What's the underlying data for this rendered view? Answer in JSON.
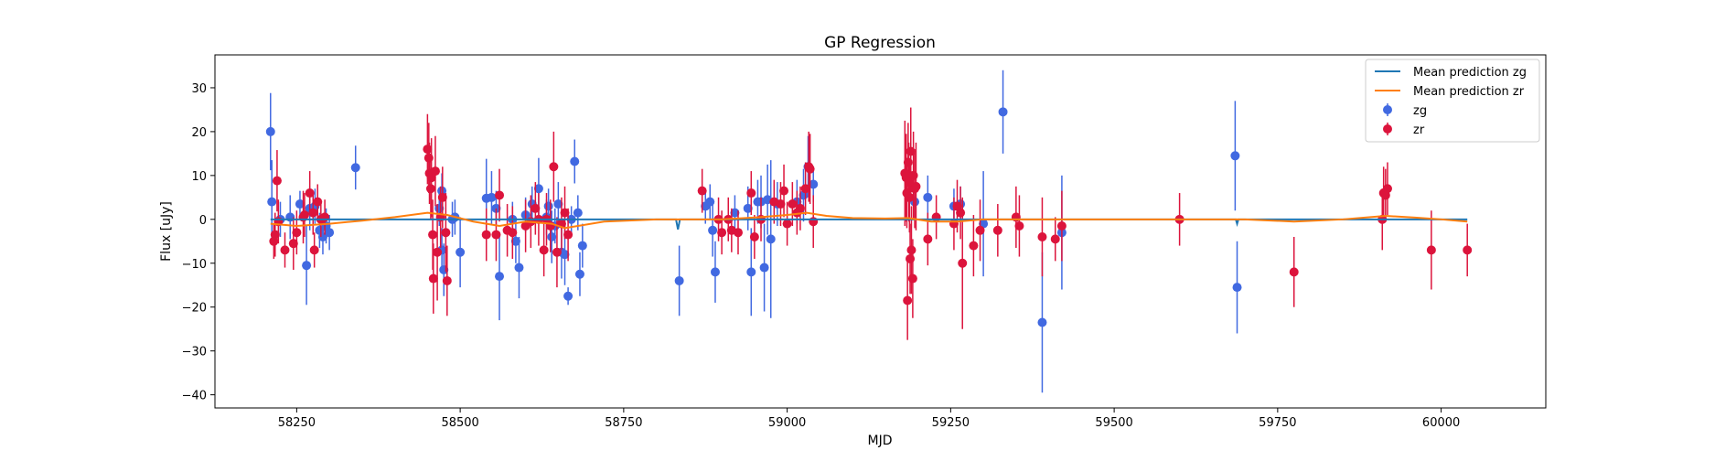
{
  "chart_data": {
    "type": "scatter",
    "title": "GP Regression",
    "xlabel": "MJD",
    "ylabel": "Flux [uJy]",
    "xlim": [
      58125,
      60160
    ],
    "ylim": [
      -43,
      37.5
    ],
    "x_ticks": [
      58250,
      58500,
      58750,
      59000,
      59250,
      59500,
      59750,
      60000
    ],
    "y_ticks": [
      -40,
      -30,
      -20,
      -10,
      0,
      10,
      20,
      30
    ],
    "grid": false,
    "legend_position": "top-right",
    "legend": [
      {
        "label": "Mean prediction zg",
        "kind": "line",
        "color": "#1f77b4"
      },
      {
        "label": "Mean prediction zr",
        "kind": "line",
        "color": "#ff7f0e"
      },
      {
        "label": "zg",
        "kind": "errorbar",
        "color": "#4169e1"
      },
      {
        "label": "zr",
        "kind": "errorbar",
        "color": "#dc143c"
      }
    ],
    "series": [
      {
        "name": "zg",
        "color": "#4169e1",
        "points": [
          [
            58210,
            20.0,
            8.8
          ],
          [
            58212,
            4.0,
            9.5
          ],
          [
            58225,
            0.0,
            4
          ],
          [
            58240,
            0.5,
            5
          ],
          [
            58255,
            3.5,
            3
          ],
          [
            58265,
            -10.5,
            9
          ],
          [
            58270,
            2.5,
            5
          ],
          [
            58278,
            3.0,
            4
          ],
          [
            58285,
            -2.5,
            4
          ],
          [
            58290,
            -4.0,
            4
          ],
          [
            58295,
            -1.5,
            4
          ],
          [
            58300,
            -3.0,
            4
          ],
          [
            58340,
            11.8,
            5
          ],
          [
            58468,
            2.5,
            4
          ],
          [
            58472,
            6.5,
            4
          ],
          [
            58472,
            -7.0,
            5
          ],
          [
            58475,
            -11.5,
            6
          ],
          [
            58488,
            0.0,
            4
          ],
          [
            58492,
            0.5,
            4
          ],
          [
            58500,
            -7.5,
            8
          ],
          [
            58540,
            4.8,
            9
          ],
          [
            58548,
            5.0,
            6
          ],
          [
            58555,
            2.5,
            4
          ],
          [
            58560,
            -13.0,
            10
          ],
          [
            58580,
            0.0,
            4
          ],
          [
            58585,
            -5.0,
            5
          ],
          [
            58590,
            -11.0,
            7
          ],
          [
            58600,
            1.0,
            4
          ],
          [
            58610,
            3.5,
            4
          ],
          [
            58620,
            7.0,
            7
          ],
          [
            58632,
            0.5,
            4
          ],
          [
            58635,
            3.0,
            4
          ],
          [
            58640,
            -4.0,
            6
          ],
          [
            58645,
            -1.5,
            4
          ],
          [
            58650,
            3.5,
            5
          ],
          [
            58655,
            -7.5,
            6
          ],
          [
            58660,
            -8.0,
            7
          ],
          [
            58665,
            -17.5,
            2
          ],
          [
            58670,
            0.0,
            3
          ],
          [
            58675,
            13.2,
            5
          ],
          [
            58680,
            1.5,
            4
          ],
          [
            58683,
            -12.5,
            5
          ],
          [
            58687,
            -6.0,
            5
          ],
          [
            58835,
            -14.0,
            8
          ],
          [
            58875,
            3.0,
            4
          ],
          [
            58882,
            4.0,
            4
          ],
          [
            58886,
            -2.5,
            6
          ],
          [
            58890,
            -12.0,
            7
          ],
          [
            58920,
            1.5,
            4
          ],
          [
            58940,
            2.5,
            5
          ],
          [
            58945,
            -12.0,
            10
          ],
          [
            58955,
            4.0,
            5
          ],
          [
            58960,
            4.0,
            6
          ],
          [
            58965,
            -11.0,
            10
          ],
          [
            58970,
            4.5,
            8
          ],
          [
            58975,
            -4.5,
            18
          ],
          [
            58985,
            3.5,
            5
          ],
          [
            59015,
            4.0,
            5
          ],
          [
            59025,
            5.5,
            6
          ],
          [
            59032,
            12.0,
            7
          ],
          [
            59040,
            8.0,
            4
          ],
          [
            59195,
            4.0,
            4
          ],
          [
            59215,
            5.0,
            5
          ],
          [
            59255,
            3.0,
            4
          ],
          [
            59265,
            3.5,
            4
          ],
          [
            59300,
            -1.0,
            12
          ],
          [
            59330,
            24.5,
            9.5
          ],
          [
            59390,
            -23.5,
            16
          ],
          [
            59420,
            -3.0,
            13
          ],
          [
            59685,
            14.5,
            12.5
          ],
          [
            59688,
            -15.5,
            10.5
          ]
        ]
      },
      {
        "name": "zr",
        "color": "#dc143c",
        "points": [
          [
            58215,
            -5.0,
            4
          ],
          [
            58217,
            -3.5,
            5
          ],
          [
            58220,
            8.8,
            7
          ],
          [
            58222,
            -0.5,
            5
          ],
          [
            58232,
            -7.0,
            4
          ],
          [
            58245,
            -5.5,
            6
          ],
          [
            58250,
            -3.0,
            5
          ],
          [
            58260,
            0.5,
            6
          ],
          [
            58262,
            1.0,
            5
          ],
          [
            58270,
            6.0,
            5
          ],
          [
            58275,
            1.5,
            5
          ],
          [
            58277,
            -7.0,
            4
          ],
          [
            58282,
            4.0,
            4
          ],
          [
            58287,
            0.0,
            4
          ],
          [
            58293,
            0.5,
            4
          ],
          [
            58450,
            16.0,
            8
          ],
          [
            58452,
            14.0,
            8
          ],
          [
            58453,
            10.5,
            7
          ],
          [
            58455,
            7.0,
            7
          ],
          [
            58456,
            9.5,
            9
          ],
          [
            58458,
            -3.5,
            8
          ],
          [
            58459,
            -13.5,
            8
          ],
          [
            58462,
            11.0,
            8
          ],
          [
            58465,
            -7.5,
            11
          ],
          [
            58470,
            0.5,
            7
          ],
          [
            58473,
            5.0,
            7
          ],
          [
            58478,
            -3.0,
            9
          ],
          [
            58480,
            -14.0,
            8
          ],
          [
            58540,
            -3.5,
            6
          ],
          [
            58555,
            -3.5,
            6
          ],
          [
            58560,
            5.5,
            6
          ],
          [
            58572,
            -2.5,
            6
          ],
          [
            58580,
            -3.0,
            6
          ],
          [
            58600,
            -1.5,
            6
          ],
          [
            58608,
            -0.5,
            6
          ],
          [
            58615,
            2.5,
            6
          ],
          [
            58620,
            0.0,
            6
          ],
          [
            58628,
            -7.0,
            6
          ],
          [
            58632,
            0.0,
            6
          ],
          [
            58638,
            -1.5,
            6
          ],
          [
            58643,
            12.0,
            8
          ],
          [
            58648,
            -7.5,
            8
          ],
          [
            58655,
            -1.0,
            6
          ],
          [
            58660,
            1.5,
            6
          ],
          [
            58665,
            -3.5,
            6
          ],
          [
            58870,
            6.5,
            5
          ],
          [
            58895,
            0.0,
            5
          ],
          [
            58900,
            -3.0,
            5
          ],
          [
            58910,
            0.0,
            5
          ],
          [
            58915,
            -2.5,
            5
          ],
          [
            58925,
            -3.0,
            5
          ],
          [
            58945,
            6.0,
            5
          ],
          [
            58950,
            -4.0,
            5
          ],
          [
            58960,
            0.0,
            5
          ],
          [
            58980,
            4.0,
            5
          ],
          [
            58990,
            3.5,
            5
          ],
          [
            58995,
            6.5,
            6
          ],
          [
            59000,
            -1.0,
            5
          ],
          [
            59008,
            3.5,
            5
          ],
          [
            59015,
            1.5,
            5
          ],
          [
            59020,
            2.5,
            5
          ],
          [
            59028,
            7.0,
            6
          ],
          [
            59033,
            12.0,
            8
          ],
          [
            59035,
            11.5,
            8
          ],
          [
            59040,
            -0.5,
            6
          ],
          [
            59180,
            10.5,
            12
          ],
          [
            59182,
            9.5,
            10
          ],
          [
            59183,
            6.0,
            8
          ],
          [
            59184,
            -18.5,
            9
          ],
          [
            59185,
            13.0,
            9
          ],
          [
            59186,
            8.5,
            9
          ],
          [
            59187,
            5.0,
            8
          ],
          [
            59188,
            -9.0,
            8
          ],
          [
            59189,
            15.5,
            10
          ],
          [
            59190,
            -7.0,
            10
          ],
          [
            59192,
            -13.5,
            9
          ],
          [
            59193,
            10.0,
            10
          ],
          [
            59195,
            7.0,
            9
          ],
          [
            59197,
            7.5,
            10
          ],
          [
            59215,
            -4.5,
            6
          ],
          [
            59228,
            0.5,
            5
          ],
          [
            59255,
            -1.0,
            6
          ],
          [
            59260,
            3.0,
            6
          ],
          [
            59265,
            1.5,
            6
          ],
          [
            59268,
            -10.0,
            15
          ],
          [
            59285,
            -6.0,
            7
          ],
          [
            59295,
            -2.5,
            7
          ],
          [
            59322,
            -2.5,
            6
          ],
          [
            59350,
            0.5,
            7
          ],
          [
            59355,
            -1.5,
            7
          ],
          [
            59390,
            -4.0,
            9
          ],
          [
            59410,
            -4.5,
            5
          ],
          [
            59420,
            -1.5,
            8
          ],
          [
            59600,
            0.0,
            6
          ],
          [
            59775,
            -12.0,
            8
          ],
          [
            59910,
            0.0,
            7
          ],
          [
            59912,
            6.0,
            6
          ],
          [
            59915,
            5.5,
            6
          ],
          [
            59918,
            7.0,
            6
          ],
          [
            59985,
            -7.0,
            9
          ],
          [
            60040,
            -7.0,
            6
          ]
        ]
      }
    ],
    "mean_prediction_zg": {
      "name": "Mean prediction zg",
      "color": "#1f77b4",
      "x": [
        58210,
        58400,
        58830,
        58833,
        58836,
        59000,
        59686,
        59688,
        59690,
        60040
      ],
      "y": [
        0.0,
        0.0,
        0.0,
        -2.3,
        0.0,
        0.0,
        0.0,
        -1.0,
        0.0,
        0.0
      ]
    },
    "mean_prediction_zr": {
      "name": "Mean prediction zr",
      "color": "#ff7f0e",
      "x": [
        58210,
        58250,
        58300,
        58350,
        58400,
        58450,
        58480,
        58520,
        58560,
        58600,
        58640,
        58660,
        58680,
        58720,
        58800,
        58900,
        58960,
        59000,
        59030,
        59060,
        59100,
        59150,
        59185,
        59220,
        59260,
        59300,
        59400,
        59600,
        59700,
        59775,
        59850,
        59915,
        59960,
        60000,
        60040
      ],
      "y": [
        -1.0,
        -1.5,
        -1.0,
        -0.3,
        0.5,
        1.5,
        1.0,
        -0.5,
        -1.5,
        -0.5,
        -1.0,
        -2.0,
        -1.5,
        -0.5,
        0.0,
        0.0,
        0.5,
        1.0,
        1.5,
        0.8,
        0.3,
        0.2,
        0.3,
        -0.5,
        -0.5,
        0.0,
        0.0,
        0.0,
        0.0,
        -0.5,
        0.0,
        0.8,
        0.4,
        0.0,
        -0.5
      ]
    }
  }
}
